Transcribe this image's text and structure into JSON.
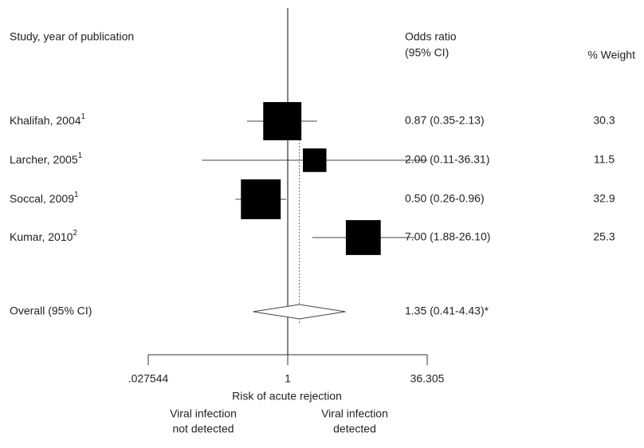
{
  "chart_data": {
    "type": "forest",
    "columns": {
      "study": "Study, year of publication",
      "or": "Odds ratio",
      "ci": "(95% CI)",
      "weight": "% Weight"
    },
    "categories": [
      "Khalifah, 2004",
      "Larcher, 2005",
      "Soccal, 2009",
      "Kumar, 2010"
    ],
    "refs": [
      "1",
      "1",
      "1",
      "2"
    ],
    "values": [
      0.87,
      2.0,
      0.5,
      7.0
    ],
    "lower": [
      0.35,
      0.11,
      0.26,
      1.88
    ],
    "upper": [
      2.13,
      36.31,
      0.96,
      26.1
    ],
    "value_labels": [
      "0.87 (0.35-2.13)",
      "2.00 (0.11-36.31)",
      "0.50 (0.26-0.96)",
      "7.00 (1.88-26.10)"
    ],
    "weights": [
      30.3,
      11.5,
      32.9,
      25.3
    ],
    "overall": {
      "label": "Overall (95% CI)",
      "value": 1.35,
      "lower": 0.41,
      "upper": 4.43,
      "value_label": "1.35 (0.41-4.43)*"
    },
    "xlabel": "Risk of acute rejection",
    "left_note": [
      "Viral infection",
      "not detected"
    ],
    "right_note": [
      "Viral infection",
      "detected"
    ],
    "xscale": "log",
    "xlim": [
      0.027544,
      36.305
    ],
    "xticks": [
      {
        "value": 0.027544,
        "label": ".027544"
      },
      1,
      36.305
    ],
    "color": "#000000"
  }
}
